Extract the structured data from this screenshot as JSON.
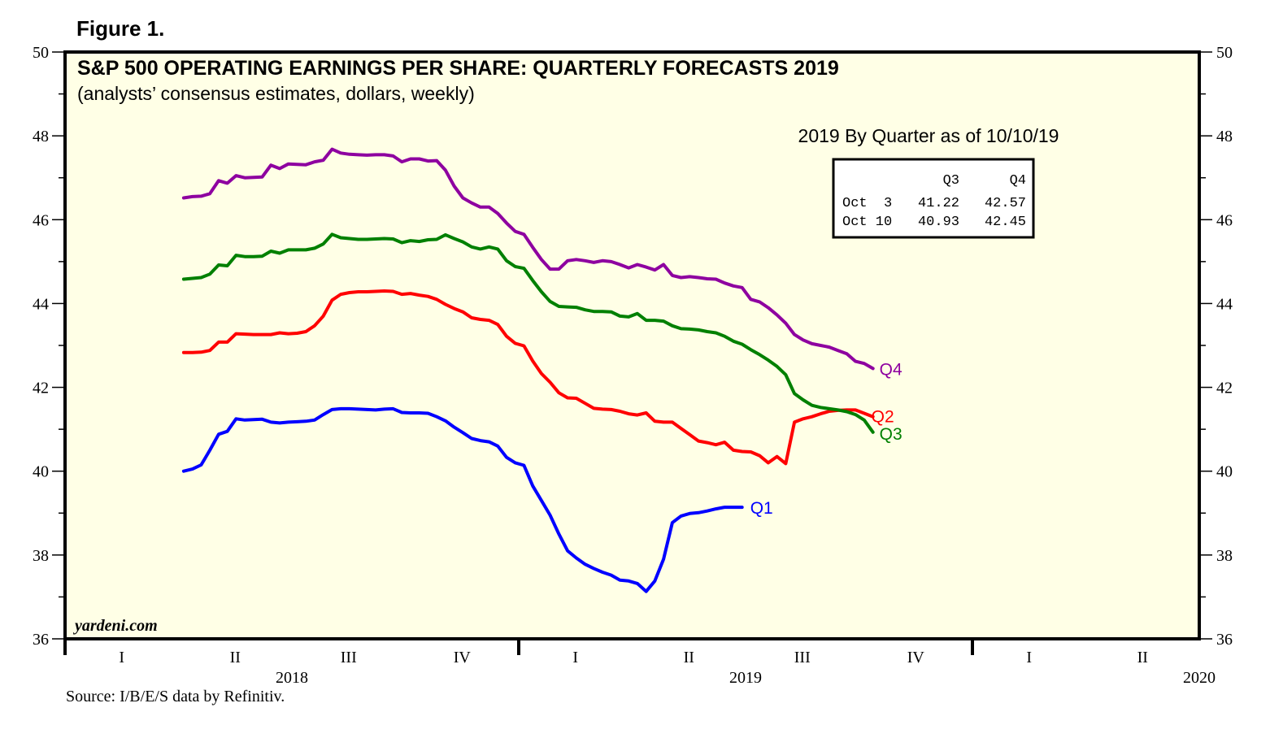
{
  "figure_label": "Figure 1.",
  "source": "Source: I/B/E/S data by Refinitiv.",
  "watermark": "yardeni.com",
  "colors": {
    "plot_background": "#ffffe6",
    "Q1": "#0000ff",
    "Q2": "#ff0000",
    "Q3": "#008000",
    "Q4": "#8e00a0"
  },
  "inset_table": {
    "heading": "2019 By Quarter as of 10/10/19",
    "columns": [
      "",
      "Q3",
      "Q4"
    ],
    "rows": [
      [
        "Oct  3",
        "41.22",
        "42.57"
      ],
      [
        "Oct 10",
        "40.93",
        "42.45"
      ]
    ]
  },
  "chart_data": {
    "type": "line",
    "title": "S&P 500 OPERATING EARNINGS PER SHARE: QUARTERLY FORECASTS 2019",
    "subtitle": "(analysts’ consensus estimates, dollars, weekly)",
    "xlabel": "",
    "ylabel": "",
    "ylim": [
      36,
      50
    ],
    "y_ticks": [
      36,
      38,
      40,
      42,
      44,
      46,
      48,
      50
    ],
    "y_minor_step": 1,
    "y_axis_both_sides": true,
    "grid": false,
    "x_range_weeks": [
      0,
      130
    ],
    "x_note": "x values are weeks since Jan 1 2018",
    "x_quarter_labels": [
      {
        "label": "I",
        "year": "2018"
      },
      {
        "label": "II",
        "year": "2018"
      },
      {
        "label": "III",
        "year": "2018"
      },
      {
        "label": "IV",
        "year": "2018"
      },
      {
        "label": "I",
        "year": "2019"
      },
      {
        "label": "II",
        "year": "2019"
      },
      {
        "label": "III",
        "year": "2019"
      },
      {
        "label": "IV",
        "year": "2019"
      },
      {
        "label": "I",
        "year": "2020"
      },
      {
        "label": "II",
        "year": "2020"
      }
    ],
    "x_year_labels": [
      "2018",
      "2019",
      "2020"
    ],
    "series": [
      {
        "name": "Q1",
        "start_week": 13.6,
        "values": [
          40.0,
          40.05,
          40.15,
          40.5,
          40.88,
          40.95,
          41.25,
          41.22,
          41.23,
          41.24,
          41.17,
          41.15,
          41.17,
          41.18,
          41.19,
          41.22,
          41.35,
          41.47,
          41.49,
          41.49,
          41.48,
          41.47,
          41.46,
          41.48,
          41.49,
          41.4,
          41.39,
          41.39,
          41.38,
          41.3,
          41.2,
          41.05,
          40.92,
          40.78,
          40.73,
          40.7,
          40.6,
          40.33,
          40.2,
          40.14,
          39.65,
          39.3,
          38.95,
          38.5,
          38.1,
          37.93,
          37.78,
          37.68,
          37.59,
          37.52,
          37.4,
          37.38,
          37.32,
          37.13,
          37.38,
          37.9,
          38.77,
          38.93,
          38.99,
          39.01,
          39.05,
          39.1,
          39.14,
          39.14,
          39.14
        ]
      },
      {
        "name": "Q2",
        "start_week": 13.6,
        "values": [
          42.83,
          42.83,
          42.84,
          42.88,
          43.08,
          43.08,
          43.28,
          43.27,
          43.26,
          43.26,
          43.26,
          43.3,
          43.28,
          43.29,
          43.33,
          43.47,
          43.7,
          44.08,
          44.22,
          44.26,
          44.28,
          44.28,
          44.29,
          44.3,
          44.29,
          44.22,
          44.24,
          44.2,
          44.17,
          44.1,
          43.98,
          43.88,
          43.8,
          43.66,
          43.62,
          43.6,
          43.5,
          43.22,
          43.05,
          42.99,
          42.63,
          42.33,
          42.12,
          41.87,
          41.75,
          41.74,
          41.62,
          41.5,
          41.48,
          41.47,
          41.43,
          41.37,
          41.34,
          41.39,
          41.19,
          41.17,
          41.17,
          41.02,
          40.87,
          40.72,
          40.68,
          40.63,
          40.69,
          40.5,
          40.47,
          40.46,
          40.37,
          40.2,
          40.35,
          40.18,
          41.17,
          41.25,
          41.3,
          41.37,
          41.43,
          41.45,
          41.46,
          41.46,
          41.38,
          41.3
        ]
      },
      {
        "name": "Q3",
        "start_week": 13.6,
        "values": [
          44.58,
          44.6,
          44.62,
          44.7,
          44.92,
          44.9,
          45.15,
          45.12,
          45.12,
          45.13,
          45.25,
          45.2,
          45.28,
          45.28,
          45.28,
          45.32,
          45.42,
          45.65,
          45.57,
          45.55,
          45.53,
          45.53,
          45.54,
          45.55,
          45.54,
          45.45,
          45.5,
          45.48,
          45.52,
          45.53,
          45.64,
          45.55,
          45.47,
          45.35,
          45.3,
          45.35,
          45.3,
          45.02,
          44.88,
          44.84,
          44.55,
          44.28,
          44.05,
          43.93,
          43.92,
          43.91,
          43.85,
          43.81,
          43.81,
          43.8,
          43.7,
          43.68,
          43.76,
          43.6,
          43.6,
          43.58,
          43.47,
          43.4,
          43.39,
          43.37,
          43.33,
          43.3,
          43.22,
          43.1,
          43.03,
          42.9,
          42.78,
          42.65,
          42.5,
          42.3,
          41.85,
          41.7,
          41.57,
          41.52,
          41.49,
          41.46,
          41.42,
          41.35,
          41.22,
          40.93
        ]
      },
      {
        "name": "Q4",
        "start_week": 13.6,
        "values": [
          46.52,
          46.55,
          46.56,
          46.62,
          46.93,
          46.87,
          47.05,
          47.0,
          47.01,
          47.02,
          47.3,
          47.22,
          47.33,
          47.32,
          47.31,
          47.38,
          47.42,
          47.68,
          47.59,
          47.56,
          47.55,
          47.54,
          47.55,
          47.55,
          47.52,
          47.38,
          47.45,
          47.45,
          47.4,
          47.41,
          47.18,
          46.8,
          46.52,
          46.4,
          46.3,
          46.3,
          46.15,
          45.92,
          45.72,
          45.65,
          45.34,
          45.05,
          44.82,
          44.82,
          45.02,
          45.05,
          45.02,
          44.98,
          45.02,
          45.0,
          44.93,
          44.85,
          44.93,
          44.87,
          44.8,
          44.93,
          44.67,
          44.62,
          44.64,
          44.62,
          44.59,
          44.58,
          44.49,
          44.42,
          44.38,
          44.1,
          44.04,
          43.9,
          43.73,
          43.53,
          43.26,
          43.13,
          43.04,
          43.0,
          42.96,
          42.88,
          42.8,
          42.62,
          42.57,
          42.45
        ]
      }
    ],
    "series_labels": [
      "Q1",
      "Q2",
      "Q3",
      "Q4"
    ]
  }
}
